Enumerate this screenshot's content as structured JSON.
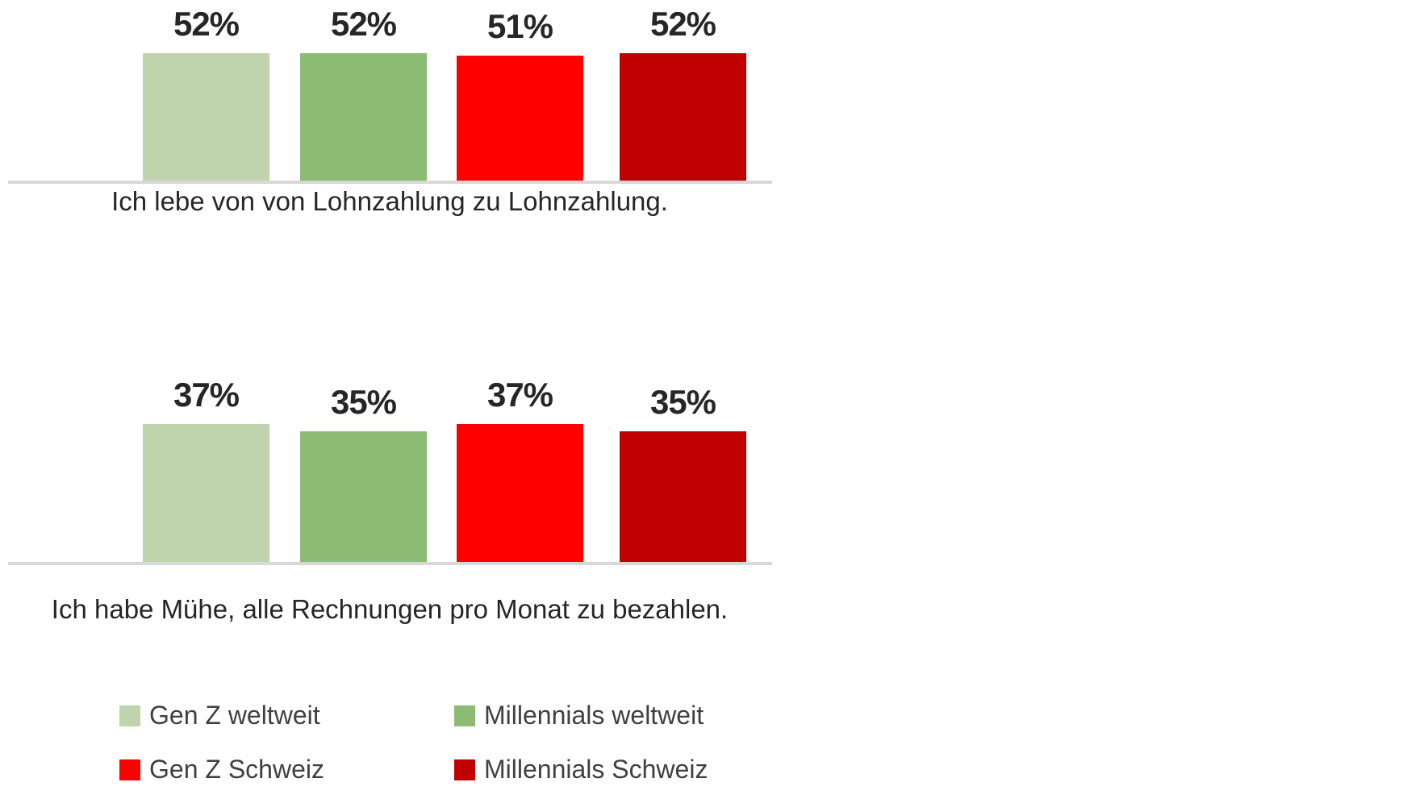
{
  "chart_data": {
    "type": "bar",
    "title": "",
    "categories": [
      "Ich lebe von von Lohnzahlung zu Lohnzahlung.",
      "Ich habe Mühe, alle Rechnungen pro Monat zu bezahlen."
    ],
    "series": [
      {
        "name": "Gen Z weltweit",
        "color": "#BFD4AC",
        "values": [
          52,
          37
        ]
      },
      {
        "name": "Millennials weltweit",
        "color": "#8CBB73",
        "values": [
          52,
          35
        ]
      },
      {
        "name": "Gen Z Schweiz",
        "color": "#FF0000",
        "values": [
          51,
          37
        ]
      },
      {
        "name": "Millennials Schweiz",
        "color": "#C00000",
        "values": [
          52,
          35
        ]
      }
    ],
    "value_suffix": "%",
    "xlabel": "",
    "ylabel": "",
    "grid": false,
    "y_axis_visible": false,
    "legend_position": "bottom-left",
    "background_color": "#FFFFFF",
    "axis_line_color": "#D8D8D8",
    "value_label_color": "#262626",
    "category_label_color": "#262626",
    "legend_text_color": "#404040"
  }
}
